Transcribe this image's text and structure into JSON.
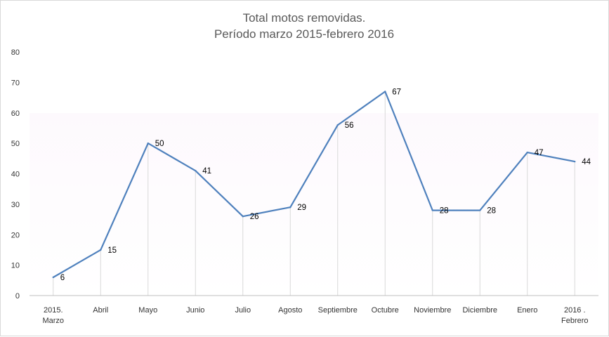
{
  "chart_data": {
    "type": "line",
    "title": "Total motos removidas.",
    "subtitle": "Período marzo 2015-febrero 2016",
    "xlabel": "",
    "ylabel": "",
    "categories": [
      [
        "2015.",
        "Marzo"
      ],
      [
        "Abril"
      ],
      [
        "Mayo"
      ],
      [
        "Junio"
      ],
      [
        "Julio"
      ],
      [
        "Agosto"
      ],
      [
        "Septiembre"
      ],
      [
        "Octubre"
      ],
      [
        "Noviembre"
      ],
      [
        "Diciembre"
      ],
      [
        "Enero"
      ],
      [
        "2016 .",
        "Febrero"
      ]
    ],
    "values": [
      6,
      15,
      50,
      41,
      26,
      29,
      56,
      67,
      28,
      28,
      47,
      44
    ],
    "ylim": [
      0,
      80
    ],
    "yticks": [
      0,
      10,
      20,
      30,
      40,
      50,
      60,
      70,
      80
    ],
    "grid": false,
    "drop_lines": true,
    "data_labels": true,
    "legend": "none",
    "colors": {
      "line": "#4f81bd",
      "drop_line": "#d9d9d9",
      "axis": "#bfbfbf",
      "title": "#595959",
      "plot_gradient_top": "#fdf9fd",
      "plot_gradient_bottom": "#ffffff"
    }
  }
}
